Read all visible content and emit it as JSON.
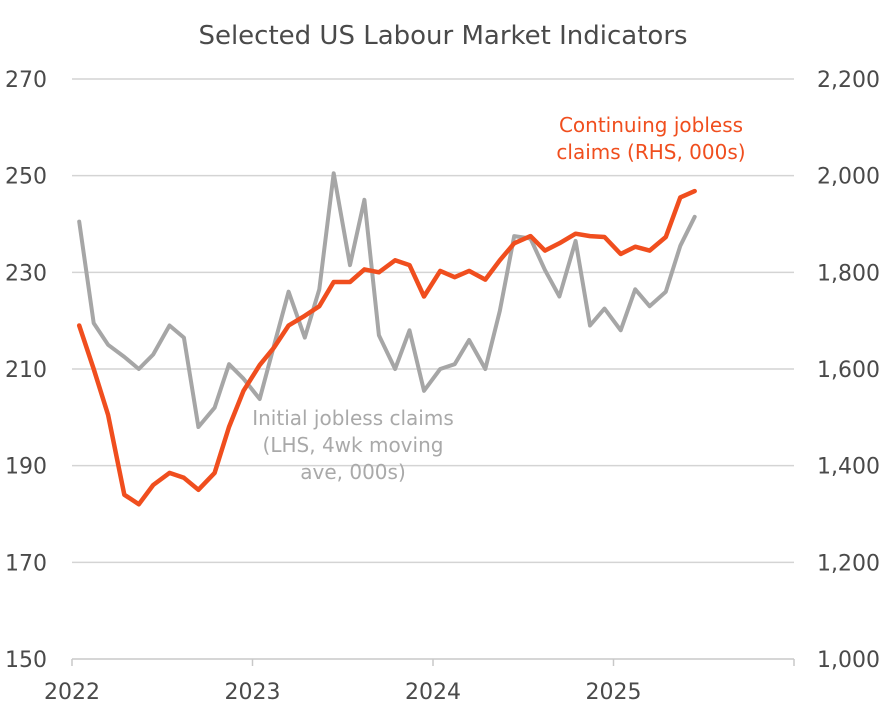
{
  "chart_data": {
    "type": "line",
    "title": "Selected US Labour Market Indicators",
    "x_ticks": [
      "2022",
      "2023",
      "2024",
      "2025"
    ],
    "y_left_ticks": [
      "270",
      "250",
      "230",
      "210",
      "190",
      "170",
      "150"
    ],
    "y_right_ticks": [
      "2,200",
      "2,000",
      "1,800",
      "1,600",
      "1,400",
      "1,200",
      "1,000"
    ],
    "ylim_left": [
      150,
      270
    ],
    "ylim_right": [
      1000,
      2200
    ],
    "xlim": [
      2022.0,
      2026.0
    ],
    "grid": true,
    "series": [
      {
        "name": "Initial jobless claims (LHS, 4wk moving ave, 000s)",
        "label_lines": [
          "Initial jobless claims",
          "(LHS, 4wk moving",
          "ave, 000s)"
        ],
        "axis": "left",
        "color": "#a6a6a6",
        "x": [
          2022.04,
          2022.12,
          2022.2,
          2022.29,
          2022.37,
          2022.45,
          2022.54,
          2022.62,
          2022.7,
          2022.79,
          2022.87,
          2022.95,
          2023.04,
          2023.12,
          2023.2,
          2023.29,
          2023.37,
          2023.45,
          2023.54,
          2023.62,
          2023.7,
          2023.79,
          2023.87,
          2023.95,
          2024.04,
          2024.12,
          2024.2,
          2024.29,
          2024.37,
          2024.45,
          2024.54,
          2024.62,
          2024.7,
          2024.79,
          2024.87,
          2024.95,
          2025.04,
          2025.12,
          2025.2,
          2025.29,
          2025.37,
          2025.45
        ],
        "values": [
          240.5,
          219.5,
          215,
          212.5,
          210,
          213,
          219,
          216.5,
          198,
          202,
          211,
          208,
          203.8,
          215,
          226,
          216.5,
          226.5,
          250.5,
          231.5,
          245,
          217,
          210,
          218,
          205.5,
          210,
          211,
          216,
          210,
          222,
          237.5,
          237,
          230.5,
          225,
          236.5,
          219,
          222.5,
          218,
          226.5,
          223,
          226,
          235.5,
          241.5
        ]
      },
      {
        "name": "Continuing jobless claims (RHS, 000s)",
        "label_lines": [
          "Continuing jobless",
          "claims (RHS, 000s)"
        ],
        "axis": "right",
        "color": "#f04e1e",
        "x": [
          2022.04,
          2022.12,
          2022.2,
          2022.29,
          2022.37,
          2022.45,
          2022.54,
          2022.62,
          2022.7,
          2022.79,
          2022.87,
          2022.95,
          2023.04,
          2023.12,
          2023.2,
          2023.29,
          2023.37,
          2023.45,
          2023.54,
          2023.62,
          2023.7,
          2023.79,
          2023.87,
          2023.95,
          2024.04,
          2024.12,
          2024.2,
          2024.29,
          2024.37,
          2024.45,
          2024.54,
          2024.62,
          2024.7,
          2024.79,
          2024.87,
          2024.95,
          2025.04,
          2025.12,
          2025.2,
          2025.29,
          2025.37,
          2025.45
        ],
        "values": [
          1690,
          1600,
          1505,
          1340,
          1320,
          1360,
          1385,
          1375,
          1350,
          1385,
          1480,
          1555,
          1608,
          1645,
          1690,
          1710,
          1730,
          1780,
          1780,
          1806,
          1800,
          1825,
          1815,
          1750,
          1803,
          1790,
          1803,
          1785,
          1825,
          1860,
          1875,
          1845,
          1860,
          1880,
          1875,
          1873,
          1838,
          1853,
          1845,
          1873,
          1955,
          1968
        ]
      }
    ]
  }
}
